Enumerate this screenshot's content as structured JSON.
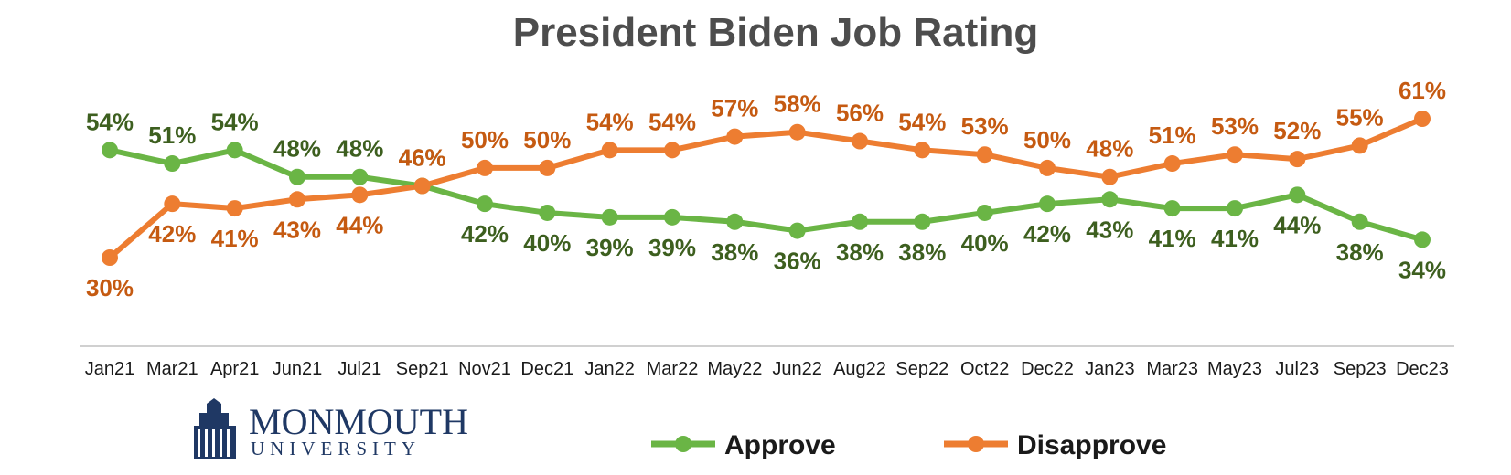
{
  "colors": {
    "approve": "#6ab545",
    "approve_label": "#3d5f1f",
    "disapprove": "#ed7d31",
    "disapprove_label": "#c55a11",
    "axis": "#d0d0d0",
    "logo": "#1f3864"
  },
  "logo": {
    "line1": "MONMOUTH",
    "line2": "UNIVERSITY",
    "icon": "university-building-icon"
  },
  "chart_data": {
    "type": "line",
    "title": "President Biden Job Rating",
    "xlabel": "",
    "ylabel": "",
    "ylim": [
      20,
      70
    ],
    "grid": false,
    "legend_position": "bottom",
    "categories": [
      "Jan21",
      "Mar21",
      "Apr21",
      "Jun21",
      "Jul21",
      "Sep21",
      "Nov21",
      "Dec21",
      "Jan22",
      "Mar22",
      "May22",
      "Jun22",
      "Aug22",
      "Sep22",
      "Oct22",
      "Dec22",
      "Jan23",
      "Mar23",
      "May23",
      "Jul23",
      "Sep23",
      "Dec23"
    ],
    "series": [
      {
        "name": "Approve",
        "values": [
          54,
          51,
          54,
          48,
          48,
          46,
          42,
          40,
          39,
          39,
          38,
          36,
          38,
          38,
          40,
          42,
          43,
          41,
          41,
          44,
          38,
          34
        ],
        "labels": [
          "54%",
          "51%",
          "54%",
          "48%",
          "48%",
          "46%",
          "42%",
          "40%",
          "39%",
          "39%",
          "38%",
          "36%",
          "38%",
          "38%",
          "40%",
          "42%",
          "43%",
          "41%",
          "41%",
          "44%",
          "38%",
          "34%"
        ]
      },
      {
        "name": "Disapprove",
        "values": [
          30,
          42,
          41,
          43,
          44,
          46,
          50,
          50,
          54,
          54,
          57,
          58,
          56,
          54,
          53,
          50,
          48,
          51,
          53,
          52,
          55,
          61
        ],
        "labels": [
          "30%",
          "42%",
          "41%",
          "43%",
          "44%",
          "46%",
          "50%",
          "50%",
          "54%",
          "54%",
          "57%",
          "58%",
          "56%",
          "54%",
          "53%",
          "50%",
          "48%",
          "51%",
          "53%",
          "52%",
          "55%",
          "61%"
        ]
      }
    ]
  }
}
